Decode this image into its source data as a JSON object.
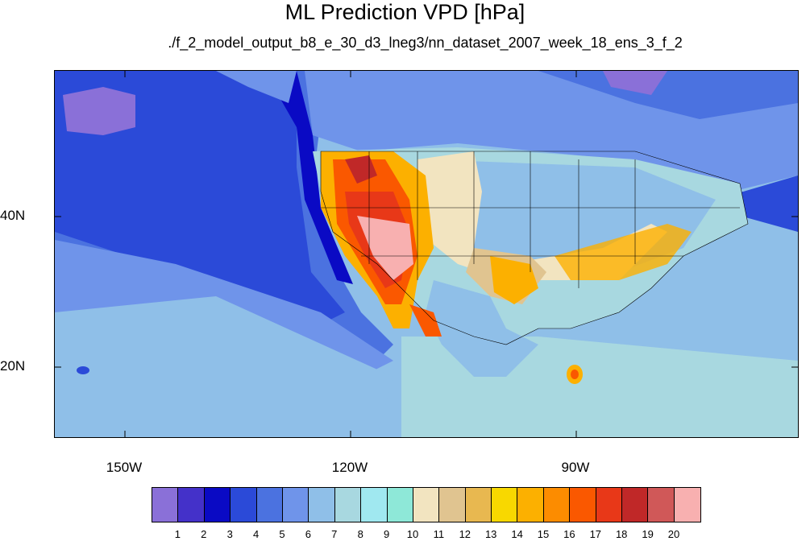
{
  "title": "ML Prediction VPD [hPa]",
  "subtitle": "./f_2_model_output_b8_e_30_d3_lneg3/nn_dataset_2007_week_18_ens_3_f_2",
  "axes": {
    "y_ticks": [
      "40N",
      "20N"
    ],
    "x_ticks": [
      "150W",
      "120W",
      "90W"
    ]
  },
  "colorbar": {
    "labels": [
      "1",
      "2",
      "3",
      "4",
      "5",
      "6",
      "7",
      "8",
      "9",
      "10",
      "11",
      "12",
      "13",
      "14",
      "15",
      "16",
      "17",
      "18",
      "19",
      "20"
    ],
    "colors": [
      "#8a70d8",
      "#4431c9",
      "#0a0ac4",
      "#2b4ad8",
      "#4b72e0",
      "#6f94ea",
      "#8fbfe8",
      "#a8d8e0",
      "#a0e8f0",
      "#8ee8d8",
      "#f2e4c0",
      "#e0c490",
      "#e8b850",
      "#f8d800",
      "#fcb000",
      "#fc8c00",
      "#fa5800",
      "#e83818",
      "#c02828",
      "#d05858",
      "#f8b0b0"
    ]
  }
}
